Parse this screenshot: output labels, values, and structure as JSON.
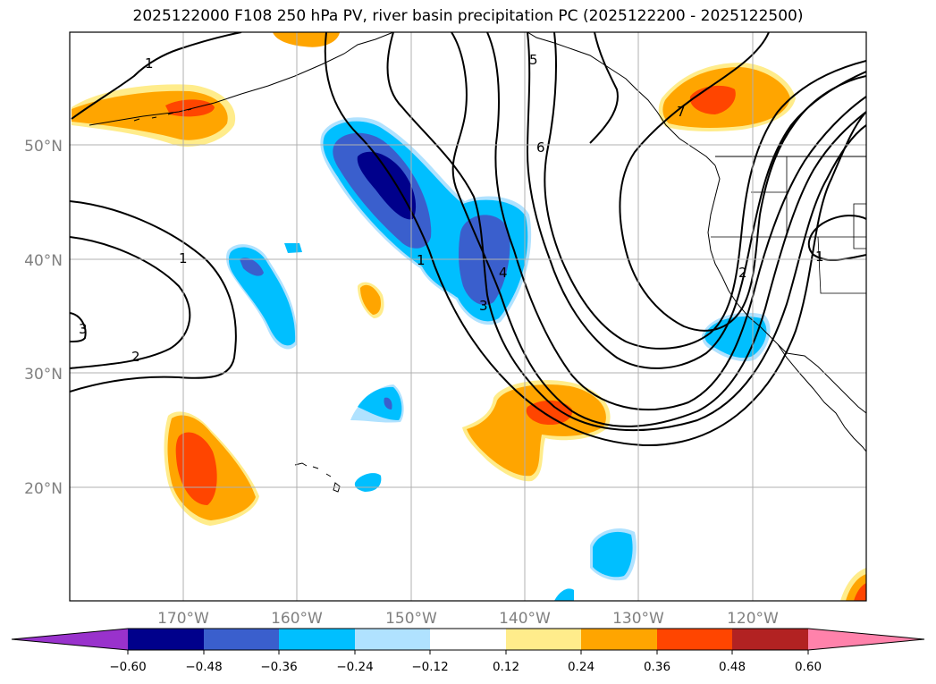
{
  "title": "2025122000 F108 250 hPa PV, river basin precipitation PC (2025122200 - 2025122500)",
  "map": {
    "lat_labels": [
      "50°N",
      "40°N",
      "30°N",
      "20°N"
    ],
    "lon_labels": [
      "170°W",
      "160°W",
      "150°W",
      "140°W",
      "130°W",
      "120°W"
    ],
    "contour_labels": [
      "1",
      "1",
      "1",
      "1",
      "2",
      "2",
      "3",
      "3",
      "4",
      "5",
      "6",
      "7"
    ]
  },
  "colorbar": {
    "colors": [
      "#9932cc",
      "#00008b",
      "#3a5fcd",
      "#00bfff",
      "#b0e2ff",
      "#ffffff",
      "#ffec8b",
      "#ffa500",
      "#ff4500",
      "#b22222",
      "#ff82ab"
    ],
    "tick_labels": [
      "−0.60",
      "−0.48",
      "−0.36",
      "−0.24",
      "−0.12",
      "0.12",
      "0.24",
      "0.36",
      "0.48",
      "0.60"
    ]
  }
}
